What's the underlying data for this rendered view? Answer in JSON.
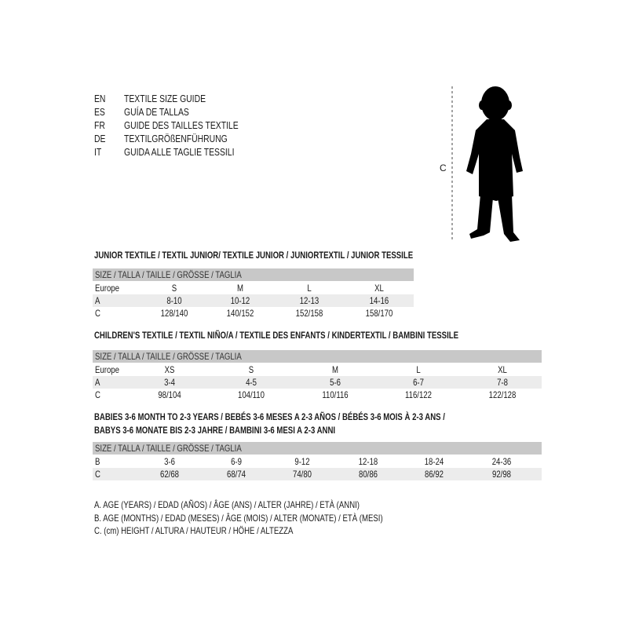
{
  "guide_titles": [
    {
      "code": "EN",
      "text": "TEXTILE SIZE GUIDE"
    },
    {
      "code": "ES",
      "text": "GUÍA DE TALLAS"
    },
    {
      "code": "FR",
      "text": "GUIDE DES TAILLES TEXTILE"
    },
    {
      "code": "DE",
      "text": "TEXTILGRÖßENFÜHRUNG"
    },
    {
      "code": "IT",
      "text": "GUIDA ALLE TAGLIE TESSILI"
    }
  ],
  "figure": {
    "measure_label": "C",
    "icon": "child-silhouette"
  },
  "size_header": "SIZE / TALLA / TAILLE / GRÖSSE / TAGLIA",
  "junior": {
    "title": "JUNIOR TEXTILE / TEXTIL JUNIOR/ TEXTILE JUNIOR / JUNIORTEXTIL / JUNIOR TESSILE",
    "rows": [
      {
        "label": "Europe",
        "values": [
          "S",
          "M",
          "L",
          "XL"
        ]
      },
      {
        "label": "A",
        "values": [
          "8-10",
          "10-12",
          "12-13",
          "14-16"
        ]
      },
      {
        "label": "C",
        "values": [
          "128/140",
          "140/152",
          "152/158",
          "158/170"
        ]
      }
    ]
  },
  "children": {
    "title": "CHILDREN'S TEXTILE / TEXTIL NIÑO/A / TEXTILE DES ENFANTS / KINDERTEXTIL / BAMBINI TESSILE",
    "rows": [
      {
        "label": "Europe",
        "values": [
          "XS",
          "S",
          "M",
          "L",
          "XL"
        ]
      },
      {
        "label": "A",
        "values": [
          "3-4",
          "4-5",
          "5-6",
          "6-7",
          "7-8"
        ]
      },
      {
        "label": "C",
        "values": [
          "98/104",
          "104/110",
          "110/116",
          "116/122",
          "122/128"
        ]
      }
    ]
  },
  "babies": {
    "title_line1": "BABIES 3-6 MONTH TO 2-3 YEARS / BEBÉS 3-6 MESES A 2-3 AÑOS / BÉBÉS 3-6 MOIS À 2-3 ANS /",
    "title_line2": "BABYS 3-6 MONATE BIS 2-3 JAHRE / BAMBINI 3-6 MESI A 2-3 ANNI",
    "rows": [
      {
        "label": "B",
        "values": [
          "3-6",
          "6-9",
          "9-12",
          "12-18",
          "18-24",
          "24-36"
        ]
      },
      {
        "label": "C",
        "values": [
          "62/68",
          "68/74",
          "74/80",
          "80/86",
          "86/92",
          "92/98"
        ]
      }
    ]
  },
  "legend": [
    "A. AGE (YEARS) / EDAD (AÑOS) / ÂGE (ANS) / ALTER (JAHRE) / ETÀ (ANNI)",
    "B. AGE (MONTHS) / EDAD (MESES) / ÂGE (MOIS) / ALTER (MONATE) / ETÀ (MESI)",
    "C. (cm) HEIGHT / ALTURA / HAUTEUR / HÖHE / ALTEZZA"
  ],
  "colors": {
    "header_gray": "#c8c8c8",
    "row_shade": "#ececec"
  }
}
